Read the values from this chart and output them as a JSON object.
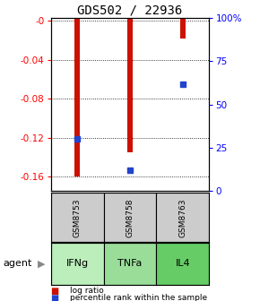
{
  "title": "GDS502 / 22936",
  "samples": [
    "GSM8753",
    "GSM8758",
    "GSM8763"
  ],
  "agents": [
    "IFNg",
    "TNFa",
    "IL4"
  ],
  "log_ratios": [
    -0.16,
    -0.135,
    -0.018
  ],
  "percentile_ranks_pct": [
    30,
    12,
    62
  ],
  "ylim_left": [
    -0.175,
    0.003
  ],
  "ylim_right": [
    0,
    100
  ],
  "right_ticks": [
    0,
    25,
    50,
    75,
    100
  ],
  "right_tick_labels": [
    "0",
    "25",
    "50",
    "75",
    "100%"
  ],
  "left_ticks": [
    0,
    -0.04,
    -0.08,
    -0.12,
    -0.16
  ],
  "left_tick_labels": [
    "-0",
    "-0.04",
    "-0.08",
    "-0.12",
    "-0.16"
  ],
  "bar_color": "#cc1100",
  "dot_color": "#2244cc",
  "sample_box_color": "#cccccc",
  "agent_box_color_light": "#aaddaa",
  "agent_box_color_medium": "#88cc88",
  "agent_box_color_dark": "#66bb66",
  "agent_colors": [
    "#bbeebb",
    "#99dd99",
    "#66cc66"
  ],
  "agent_label": "agent",
  "legend_ratio_label": "log ratio",
  "legend_pct_label": "percentile rank within the sample",
  "background_color": "#ffffff",
  "title_fontsize": 10,
  "bar_width": 0.1
}
